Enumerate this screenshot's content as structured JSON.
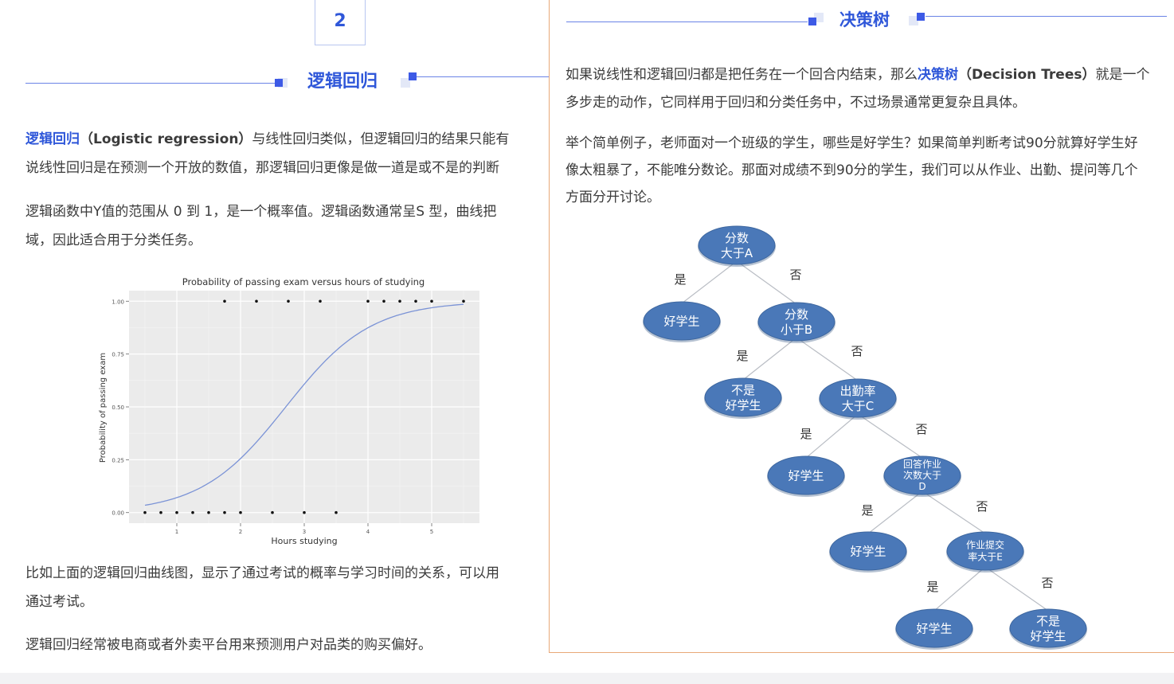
{
  "left": {
    "section_number": "2",
    "section_title": "逻辑回归",
    "p1_line1_term": "逻辑回归",
    "p1_line1_en": "（Logistic regression）",
    "p1_line1_rest": "与线性回归类似，但逻辑回归的结果只能有",
    "p1_line2": "说线性回归是在预测一个开放的数值，那逻辑回归更像是做一道是或不是的判断",
    "p2_line1": "逻辑函数中Y值的范围从 0 到 1，是一个概率值。逻辑函数通常呈S 型，曲线把",
    "p2_line2": "域，因此适合用于分类任务。",
    "p3_line1": "比如上面的逻辑回归曲线图，显示了通过考试的概率与学习时间的关系，可以用",
    "p3_line2": "通过考试。",
    "p4": "逻辑回归经常被电商或者外卖平台用来预测用户对品类的购买偏好。"
  },
  "chart_data": {
    "type": "scatter",
    "title": "Probability of passing exam versus hours of studying",
    "xlabel": "Hours studying",
    "ylabel": "Probability of passing exam",
    "xlim": [
      0.25,
      5.75
    ],
    "ylim": [
      -0.05,
      1.05
    ],
    "x_ticks": [
      "1",
      "2",
      "3",
      "4",
      "5"
    ],
    "y_ticks": [
      "0.00",
      "0.25",
      "0.50",
      "0.75",
      "1.00"
    ],
    "grid": true,
    "series": [
      {
        "kind": "points",
        "x": [
          0.5,
          0.75,
          1.0,
          1.25,
          1.5,
          1.75,
          1.75,
          2.0,
          2.25,
          2.5,
          2.75,
          3.0,
          3.25,
          3.5,
          4.0,
          4.25,
          4.5,
          4.75,
          5.0,
          5.5
        ],
        "y": [
          0,
          0,
          0,
          0,
          0,
          0,
          1,
          0,
          1,
          0,
          1,
          0,
          1,
          0,
          1,
          1,
          1,
          1,
          1,
          1
        ]
      },
      {
        "kind": "logistic_curve",
        "intercept": -4.0777,
        "slope": 1.5046,
        "color": "#7b93d6"
      }
    ]
  },
  "right": {
    "section_title": "决策树",
    "p1_pre": "如果说线性和逻辑回归都是把任务在一个回合内结束，那么",
    "p1_term": "决策树",
    "p1_en": "（Decision Trees）",
    "p1_post": "就是一个",
    "p1_line2": "多步走的动作，它同样用于回归和分类任务中，不过场景通常更复杂且具体。",
    "p2_line1": "举个简单例子，老师面对一个班级的学生，哪些是好学生？如果简单判断考试90分就算好学生好",
    "p2_line2": "像太粗暴了，不能唯分数论。那面对成绩不到90分的学生，我们可以从作业、出勤、提问等几个",
    "p2_line3": "方面分开讨论。"
  },
  "tree": {
    "node_color": "#4a78b8",
    "nodes": {
      "n1": [
        "分数",
        "大于A"
      ],
      "n2": [
        "好学生"
      ],
      "n3": [
        "分数",
        "小于B"
      ],
      "n4": [
        "不是",
        "好学生"
      ],
      "n5": [
        "出勤率",
        "大于C"
      ],
      "n6": [
        "好学生"
      ],
      "n7": [
        "回答作业",
        "次数大于",
        "D"
      ],
      "n8": [
        "好学生"
      ],
      "n9": [
        "作业提交",
        "率大于E"
      ],
      "n10": [
        "好学生"
      ],
      "n11": [
        "不是",
        "好学生"
      ]
    },
    "yes_label": "是",
    "no_label": "否"
  }
}
